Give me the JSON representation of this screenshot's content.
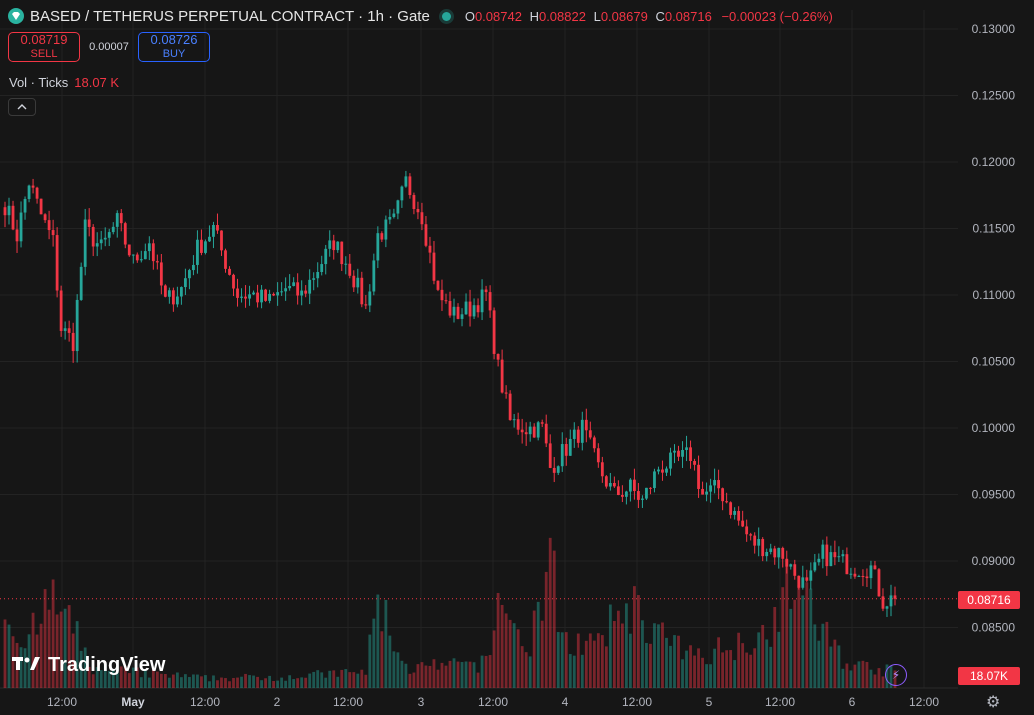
{
  "header": {
    "title": "BASED / TETHERUS PERPETUAL CONTRACT · 1h · Gate",
    "ohlc": {
      "o_label": "O",
      "o": "0.08742",
      "h_label": "H",
      "h": "0.08822",
      "l_label": "L",
      "l": "0.08679",
      "c_label": "C",
      "c": "0.08716",
      "change": "−0.00023 (−0.26%)"
    }
  },
  "trade": {
    "sell_price": "0.08719",
    "sell_label": "SELL",
    "spread": "0.00007",
    "buy_price": "0.08726",
    "buy_label": "BUY"
  },
  "volume_indicator": {
    "label": "Vol · Ticks",
    "value": "18.07 K"
  },
  "collapse_icon": "chevron-up-icon",
  "branding": {
    "name": "TradingView"
  },
  "labels": {
    "last_price": "0.08716",
    "last_volume": "18.07K"
  },
  "colors": {
    "up": "#26a69a",
    "down": "#f23645",
    "background": "#161616",
    "grid": "#232323",
    "text": "#d1d4dc"
  },
  "chart_data": {
    "type": "candlestick",
    "interval": "1h",
    "y_axis": {
      "ticks": [
        "0.13000",
        "0.12500",
        "0.12000",
        "0.11500",
        "0.11000",
        "0.10500",
        "0.10000",
        "0.09500",
        "0.09000",
        "0.08500"
      ],
      "range": [
        0.0818,
        0.1318
      ]
    },
    "x_axis": {
      "ticks": [
        "12:00",
        "May",
        "12:00",
        "2",
        "12:00",
        "3",
        "12:00",
        "4",
        "12:00",
        "5",
        "12:00",
        "6",
        "12:00"
      ]
    },
    "last_price": 0.08716,
    "anchors": [
      [
        0,
        0.1168
      ],
      [
        3,
        0.1145
      ],
      [
        6,
        0.1185
      ],
      [
        9,
        0.116
      ],
      [
        12,
        0.114
      ],
      [
        14,
        0.1075
      ],
      [
        17,
        0.1065
      ],
      [
        20,
        0.115
      ],
      [
        24,
        0.1135
      ],
      [
        28,
        0.1155
      ],
      [
        32,
        0.1125
      ],
      [
        36,
        0.114
      ],
      [
        40,
        0.1095
      ],
      [
        44,
        0.1105
      ],
      [
        48,
        0.1135
      ],
      [
        52,
        0.115
      ],
      [
        55,
        0.1125
      ],
      [
        58,
        0.11
      ],
      [
        62,
        0.11
      ],
      [
        66,
        0.1095
      ],
      [
        70,
        0.1105
      ],
      [
        74,
        0.11
      ],
      [
        78,
        0.112
      ],
      [
        82,
        0.114
      ],
      [
        86,
        0.112
      ],
      [
        90,
        0.109
      ],
      [
        93,
        0.1145
      ],
      [
        97,
        0.1155
      ],
      [
        100,
        0.1185
      ],
      [
        104,
        0.116
      ],
      [
        108,
        0.11
      ],
      [
        112,
        0.1085
      ],
      [
        116,
        0.109
      ],
      [
        120,
        0.11
      ],
      [
        123,
        0.1045
      ],
      [
        126,
        0.1005
      ],
      [
        130,
        0.1
      ],
      [
        134,
        0.1
      ],
      [
        136,
        0.097
      ],
      [
        140,
        0.0985
      ],
      [
        144,
        0.1
      ],
      [
        148,
        0.097
      ],
      [
        152,
        0.095
      ],
      [
        156,
        0.0955
      ],
      [
        159,
        0.0945
      ],
      [
        163,
        0.097
      ],
      [
        167,
        0.0975
      ],
      [
        171,
        0.098
      ],
      [
        174,
        0.095
      ],
      [
        178,
        0.0955
      ],
      [
        182,
        0.0935
      ],
      [
        186,
        0.0915
      ],
      [
        190,
        0.091
      ],
      [
        194,
        0.0905
      ],
      [
        197,
        0.089
      ],
      [
        200,
        0.088
      ],
      [
        204,
        0.0905
      ],
      [
        208,
        0.09
      ],
      [
        212,
        0.0895
      ],
      [
        216,
        0.0895
      ],
      [
        219,
        0.087
      ],
      [
        222,
        0.0872
      ]
    ],
    "volume_profile": [
      [
        0,
        0.45
      ],
      [
        6,
        0.3
      ],
      [
        12,
        0.55
      ],
      [
        16,
        0.4
      ],
      [
        22,
        0.12
      ],
      [
        40,
        0.08
      ],
      [
        50,
        0.06
      ],
      [
        70,
        0.07
      ],
      [
        90,
        0.1
      ],
      [
        93,
        0.55
      ],
      [
        100,
        0.12
      ],
      [
        120,
        0.15
      ],
      [
        124,
        0.6
      ],
      [
        130,
        0.2
      ],
      [
        136,
        0.75
      ],
      [
        140,
        0.3
      ],
      [
        148,
        0.25
      ],
      [
        155,
        0.55
      ],
      [
        160,
        0.4
      ],
      [
        170,
        0.2
      ],
      [
        180,
        0.25
      ],
      [
        190,
        0.35
      ],
      [
        197,
        0.7
      ],
      [
        200,
        0.5
      ],
      [
        210,
        0.15
      ],
      [
        222,
        0.1
      ]
    ]
  }
}
